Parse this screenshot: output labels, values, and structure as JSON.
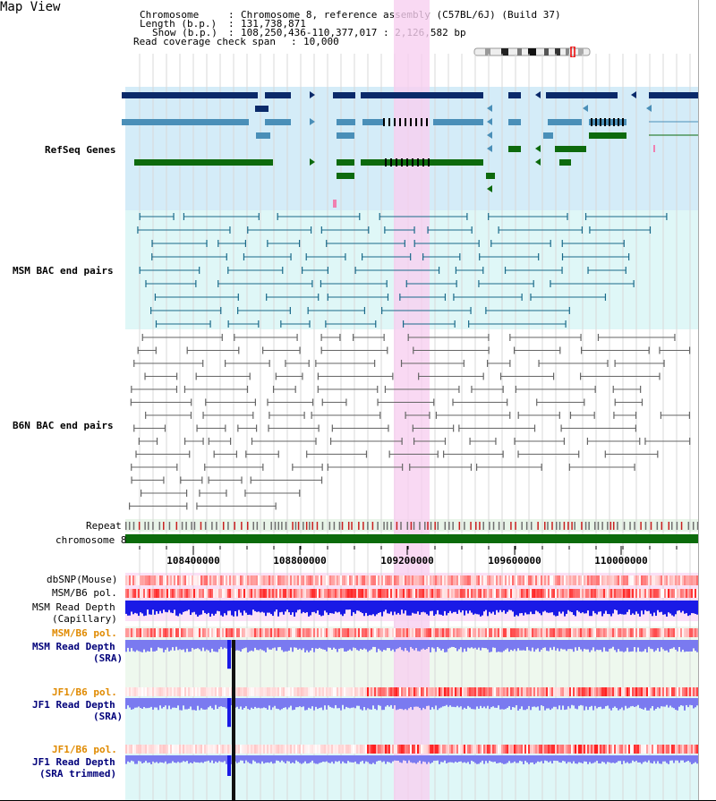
{
  "app": {
    "title": "Map View"
  },
  "info": {
    "chromosome_key": "Chromosome",
    "chromosome_value": "Chromosome 8, reference assembly (C57BL/6J) (Build 37)",
    "length_key": "Length (b.p.)",
    "length_value": "131,738,871",
    "show_key": "Show (b.p.)",
    "show_value": "108,250,436-110,377,017 : 2,126,582 bp",
    "coverage_key": "Read coverage check span",
    "coverage_value": "10,000"
  },
  "tracks": {
    "refseq": "RefSeq Genes",
    "msm_bac": "MSM BAC end pairs",
    "b6n_bac": "B6N BAC end pairs",
    "repeat": "Repeat",
    "chromosome": "chromosome 8",
    "dbsnp": "dbSNP(Mouse)",
    "msm_b6_pol": "MSM/B6 pol.",
    "msm_depth_cap_1": "MSM Read Depth",
    "msm_depth_cap_2": "(Capillary)",
    "msm_b6_pol_2": "MSM/B6 pol.",
    "msm_depth_sra_1": "MSM Read Depth",
    "msm_depth_sra_2": "(SRA)",
    "jf1_b6_pol": "JF1/B6 pol.",
    "jf1_depth_sra_1": "JF1 Read Depth",
    "jf1_depth_sra_2": "(SRA)",
    "jf1_b6_pol_2": "JF1/B6 pol.",
    "jf1_depth_trim_1": "JF1 Read Depth",
    "jf1_depth_trim_2": "(SRA trimmed)"
  },
  "axis": {
    "ticks": [
      "108400000",
      "108800000",
      "109200000",
      "109600000",
      "110000000"
    ]
  },
  "colors": {
    "highlight": "#f7d0f0",
    "refseq_bg": "#d4ecf8",
    "msm_bg": "#dff7f7",
    "b6n_bg": "#ffffff",
    "gene_dark": "#0a2a6a",
    "gene_mid": "#4a8fb8",
    "gene_green": "#0d6a0d",
    "msm_pair": "#1a6a8a",
    "b6n_pair": "#666666",
    "chrom_green": "#0b6b0b",
    "depth_blue": "#1a1ae6",
    "sra_blue": "#7a7af0",
    "label_navy": "#00007a",
    "label_teal": "#006a7a",
    "label_orange": "#e08a00"
  }
}
